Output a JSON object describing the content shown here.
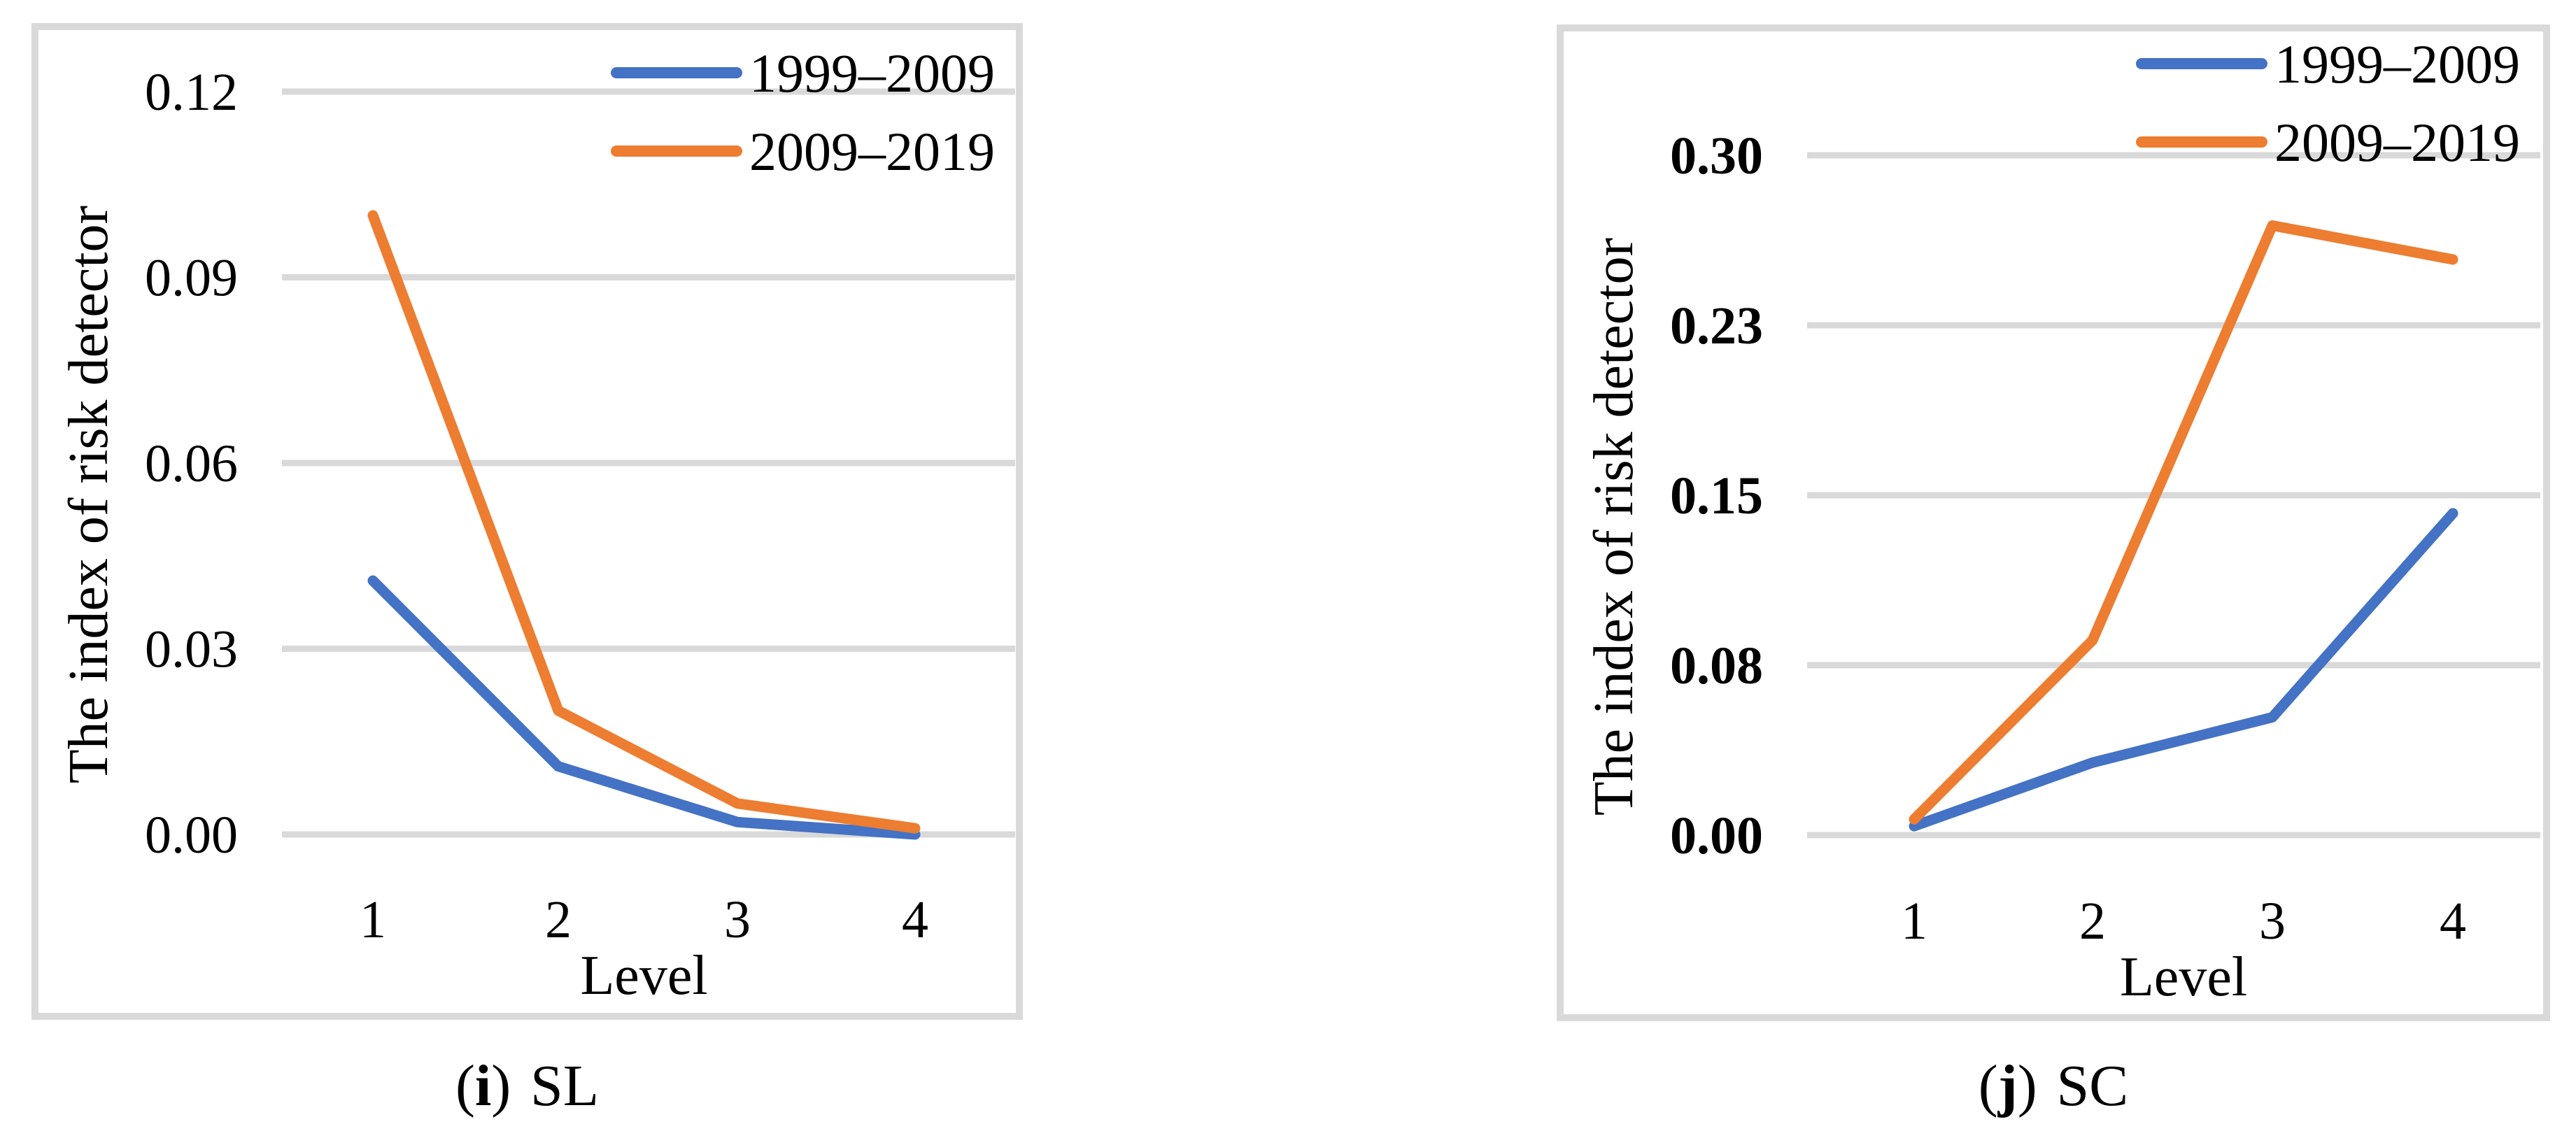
{
  "figure": {
    "background": "#ffffff",
    "charts": [
      {
        "caption": {
          "open": "(",
          "marker": "i",
          "close": ")",
          "label": "SL"
        },
        "y_axis_title": "The index of risk detector",
        "x_axis_title": "Level",
        "x_tick_labels": [
          "1",
          "2",
          "3",
          "4"
        ],
        "y_tick_labels": [
          "0.12",
          "0.09",
          "0.06",
          "0.03",
          "0.00"
        ],
        "legend": [
          {
            "label": "1999–2009",
            "color": "#4472C4"
          },
          {
            "label": "2009–2019",
            "color": "#ED7D31"
          }
        ]
      },
      {
        "caption": {
          "open": "(",
          "marker": "j",
          "close": ")",
          "label": "SC"
        },
        "y_axis_title": "The index of risk detector",
        "x_axis_title": "Level",
        "x_tick_labels": [
          "1",
          "2",
          "3",
          "4"
        ],
        "y_tick_labels": [
          "0.30",
          "0.23",
          "0.15",
          "0.08",
          "0.00"
        ],
        "legend": [
          {
            "label": "1999–2009",
            "color": "#4472C4"
          },
          {
            "label": "2009–2019",
            "color": "#ED7D31"
          }
        ]
      }
    ],
    "colors": {
      "series_1999_2009": "#4472C4",
      "series_2009_2019": "#ED7D31",
      "gridline": "#D9D9D9",
      "chart_border": "#D9D9D9",
      "text": "#000000"
    }
  },
  "chart_data": [
    {
      "type": "line",
      "title": "(i) SL",
      "x": [
        1,
        2,
        3,
        4
      ],
      "xlabel": "Level",
      "ylabel": "The index of risk detector",
      "ylim": [
        0,
        0.12
      ],
      "yticks": [
        0,
        0.03,
        0.06,
        0.09,
        0.12
      ],
      "ytick_labels": [
        "0.00",
        "0.03",
        "0.06",
        "0.09",
        "0.12"
      ],
      "grid": true,
      "legend_position": "top-right",
      "series": [
        {
          "name": "1999–2009",
          "values": [
            0.041,
            0.011,
            0.002,
            0.0
          ]
        },
        {
          "name": "2009–2019",
          "values": [
            0.1,
            0.02,
            0.005,
            0.001
          ]
        }
      ]
    },
    {
      "type": "line",
      "title": "(j) SC",
      "x": [
        1,
        2,
        3,
        4
      ],
      "xlabel": "Level",
      "ylabel": "The index of risk detector",
      "ylim": [
        0,
        0.3
      ],
      "yticks": [
        0,
        0.075,
        0.15,
        0.225,
        0.3
      ],
      "ytick_labels": [
        "0.00",
        "0.08",
        "0.15",
        "0.23",
        "0.30"
      ],
      "grid": true,
      "legend_position": "top-right",
      "series": [
        {
          "name": "1999–2009",
          "values": [
            0.004,
            0.032,
            0.052,
            0.142
          ]
        },
        {
          "name": "2009–2019",
          "values": [
            0.007,
            0.086,
            0.269,
            0.254
          ]
        }
      ]
    }
  ]
}
